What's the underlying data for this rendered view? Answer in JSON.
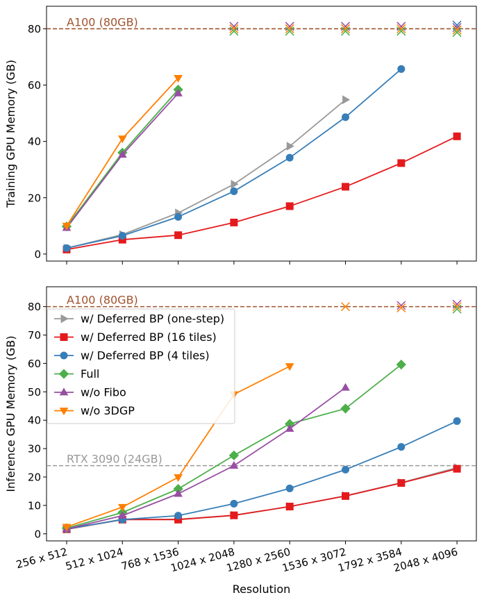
{
  "chart_data": [
    {
      "type": "line",
      "panel": "top",
      "ylabel": "Training GPU Memory (GB)",
      "xlabel": "",
      "categories": [
        "256 x 512",
        "512 x 1024",
        "768 x 1536",
        "1024 x 2048",
        "1280 x 2560",
        "1536 x 3072",
        "1792 x 3584",
        "2048 x 4096"
      ],
      "ylim": [
        -2.5,
        88
      ],
      "yticks": [
        0,
        20,
        40,
        60,
        80
      ],
      "grid": false,
      "reference_lines": [
        {
          "label": "A100 (80GB)",
          "value": 80,
          "color": "#a0522d"
        }
      ],
      "series": [
        {
          "name": "w/ Deferred BP (one-step)",
          "color": "#999999",
          "marker": "tri-right",
          "values": [
            2.1,
            6.9,
            14.6,
            24.8,
            38.3,
            54.8,
            null,
            null
          ]
        },
        {
          "name": "w/ Deferred BP (16 tiles)",
          "color": "#e41a1c",
          "marker": "square",
          "values": [
            1.6,
            5.1,
            6.7,
            11.2,
            17.0,
            23.9,
            32.3,
            41.8
          ]
        },
        {
          "name": "w/ Deferred BP (4 tiles)",
          "color": "#377eb8",
          "marker": "circle",
          "values": [
            2.1,
            6.5,
            13.2,
            22.3,
            34.2,
            48.6,
            65.7,
            null
          ]
        },
        {
          "name": "Full",
          "color": "#4daf4a",
          "marker": "diamond",
          "values": [
            9.8,
            36.0,
            58.4,
            null,
            null,
            null,
            null,
            null
          ]
        },
        {
          "name": "w/o Fibo",
          "color": "#984ea3",
          "marker": "tri-up",
          "values": [
            9.3,
            35.3,
            57.1,
            null,
            null,
            null,
            null,
            null
          ]
        },
        {
          "name": "w/o 3DGP",
          "color": "#ff7f00",
          "marker": "tri-down",
          "values": [
            10.0,
            41.0,
            62.5,
            null,
            null,
            null,
            null,
            null
          ]
        }
      ],
      "oom_markers": [
        {
          "x": 3,
          "series": [
            "w/o Fibo",
            "w/o 3DGP",
            "Full"
          ]
        },
        {
          "x": 4,
          "series": [
            "w/o Fibo",
            "w/o 3DGP",
            "Full"
          ]
        },
        {
          "x": 5,
          "series": [
            "w/o Fibo",
            "w/o 3DGP",
            "Full"
          ]
        },
        {
          "x": 6,
          "series": [
            "w/o Fibo",
            "w/o 3DGP",
            "Full"
          ]
        },
        {
          "x": 7,
          "series": [
            "w/ Deferred BP (4 tiles)",
            "w/o Fibo",
            "w/o 3DGP",
            "Full"
          ]
        }
      ]
    },
    {
      "type": "line",
      "panel": "bottom",
      "ylabel": "Inference GPU Memory (GB)",
      "xlabel": "Resolution",
      "categories": [
        "256 x 512",
        "512 x 1024",
        "768 x 1536",
        "1024 x 2048",
        "1280 x 2560",
        "1536 x 3072",
        "1792 x 3584",
        "2048 x 4096"
      ],
      "ylim": [
        -2.5,
        87
      ],
      "yticks": [
        0,
        10,
        20,
        30,
        40,
        50,
        60,
        70,
        80
      ],
      "grid": false,
      "legend_position": "upper-left",
      "reference_lines": [
        {
          "label": "A100 (80GB)",
          "value": 80,
          "color": "#a0522d"
        },
        {
          "label": "RTX 3090 (24GB)",
          "value": 24,
          "color": "#999999"
        }
      ],
      "series": [
        {
          "name": "w/ Deferred BP (one-step)",
          "color": "#999999",
          "marker": "tri-right",
          "values": [
            1.6,
            5.1,
            5.1,
            6.5,
            9.6,
            13.4,
            18.0,
            23.3
          ]
        },
        {
          "name": "w/ Deferred BP (16 tiles)",
          "color": "#e41a1c",
          "marker": "square",
          "values": [
            1.6,
            5.0,
            5.0,
            6.5,
            9.6,
            13.3,
            17.9,
            22.9
          ]
        },
        {
          "name": "w/ Deferred BP (4 tiles)",
          "color": "#377eb8",
          "marker": "circle",
          "values": [
            1.7,
            5.0,
            6.4,
            10.6,
            16.0,
            22.6,
            30.6,
            39.7
          ]
        },
        {
          "name": "Full",
          "color": "#4daf4a",
          "marker": "diamond",
          "values": [
            2.0,
            7.5,
            15.8,
            27.6,
            38.7,
            44.1,
            59.6,
            null
          ]
        },
        {
          "name": "w/o Fibo",
          "color": "#984ea3",
          "marker": "tri-up",
          "values": [
            1.7,
            6.4,
            14.1,
            24.0,
            37.0,
            51.5,
            null,
            null
          ]
        },
        {
          "name": "w/o 3DGP",
          "color": "#ff7f00",
          "marker": "tri-down",
          "values": [
            2.4,
            9.4,
            19.9,
            49.1,
            59.0,
            null,
            null,
            null
          ]
        }
      ],
      "oom_markers": [
        {
          "x": 5,
          "series": [
            "w/o 3DGP"
          ]
        },
        {
          "x": 6,
          "series": [
            "w/o Fibo",
            "w/o 3DGP"
          ]
        },
        {
          "x": 7,
          "series": [
            "w/o Fibo",
            "w/o 3DGP",
            "Full"
          ]
        }
      ]
    }
  ]
}
